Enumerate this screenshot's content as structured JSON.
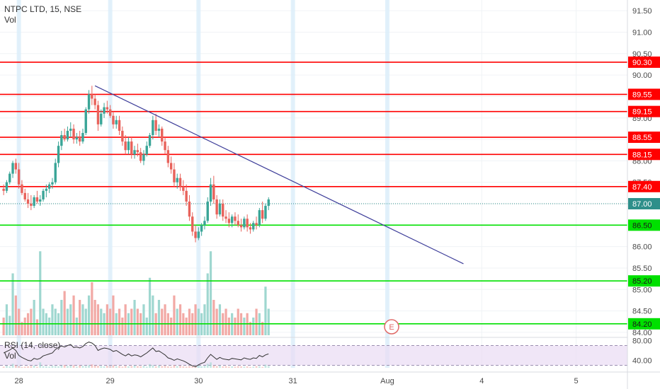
{
  "header": {
    "title": "NTPC LTD, 15, NSE",
    "volume_label": "Vol",
    "rsi_label": "RSI (14, close)",
    "rsi_vol_label": "Vol"
  },
  "colors": {
    "up": "#3aa597",
    "down": "#e8625b",
    "vol_up": "#9fd7d0",
    "vol_down": "#f2a9a5",
    "resistance": "#ff0000",
    "support": "#00e000",
    "trendline": "#3d3d99",
    "rsi_band": "#e9dcf3",
    "rsi_line": "#333333",
    "highlight": "#dbeefa",
    "event": "#e06a67"
  },
  "event_marker": "E",
  "chart_data": {
    "type": "candlestick",
    "symbol": "NTPC LTD",
    "interval": "15",
    "exchange": "NSE",
    "price_axis": {
      "ylim": [
        83.9,
        91.75
      ],
      "ticks": [
        "84.00",
        "84.50",
        "85.00",
        "85.50",
        "86.00",
        "86.50",
        "87.00",
        "87.50",
        "88.00",
        "88.50",
        "89.00",
        "89.50",
        "90.00",
        "90.50",
        "91.00",
        "91.50"
      ]
    },
    "time_axis": {
      "labels": [
        "28",
        "29",
        "30",
        "31",
        "Aug",
        "4",
        "5"
      ]
    },
    "current_price": 87.0,
    "horizontal_levels": [
      {
        "label": "90.30",
        "value": 90.3,
        "kind": "resistance"
      },
      {
        "label": "89.55",
        "value": 89.55,
        "kind": "resistance"
      },
      {
        "label": "89.15",
        "value": 89.15,
        "kind": "resistance"
      },
      {
        "label": "88.55",
        "value": 88.55,
        "kind": "resistance"
      },
      {
        "label": "88.15",
        "value": 88.15,
        "kind": "resistance"
      },
      {
        "label": "87.40",
        "value": 87.4,
        "kind": "resistance"
      },
      {
        "label": "87.00",
        "value": 87.0,
        "kind": "current"
      },
      {
        "label": "86.50",
        "value": 86.5,
        "kind": "support"
      },
      {
        "label": "85.20",
        "value": 85.2,
        "kind": "support"
      },
      {
        "label": "84.20",
        "value": 84.2,
        "kind": "support"
      }
    ],
    "trendline": {
      "from": {
        "bar": 30,
        "price": 89.75
      },
      "to": {
        "bar": 151,
        "price": 85.6
      }
    },
    "rsi": {
      "ylim": [
        25,
        85
      ],
      "band": [
        30,
        70
      ],
      "ticks": [
        "40.00",
        "80.00"
      ]
    },
    "candles": [
      [
        87.35,
        87.45,
        87.2,
        87.3
      ],
      [
        87.3,
        87.55,
        87.25,
        87.5
      ],
      [
        87.5,
        87.75,
        87.45,
        87.7
      ],
      [
        87.7,
        88.0,
        87.6,
        87.95
      ],
      [
        87.95,
        88.05,
        87.7,
        87.8
      ],
      [
        87.8,
        87.95,
        87.35,
        87.45
      ],
      [
        87.45,
        87.55,
        87.2,
        87.25
      ],
      [
        87.25,
        87.35,
        87.05,
        87.1
      ],
      [
        87.1,
        87.25,
        86.9,
        87.0
      ],
      [
        87.0,
        87.2,
        86.85,
        86.95
      ],
      [
        86.95,
        87.2,
        86.9,
        87.15
      ],
      [
        87.15,
        87.3,
        87.0,
        87.05
      ],
      [
        87.05,
        87.2,
        86.95,
        87.1
      ],
      [
        87.1,
        87.35,
        87.05,
        87.3
      ],
      [
        87.3,
        87.45,
        87.15,
        87.35
      ],
      [
        87.35,
        87.5,
        87.25,
        87.45
      ],
      [
        87.45,
        87.6,
        87.35,
        87.5
      ],
      [
        87.5,
        88.05,
        87.45,
        87.95
      ],
      [
        87.95,
        88.45,
        87.85,
        88.35
      ],
      [
        88.35,
        88.7,
        88.25,
        88.6
      ],
      [
        88.6,
        88.75,
        88.45,
        88.5
      ],
      [
        88.5,
        88.8,
        88.45,
        88.7
      ],
      [
        88.7,
        88.9,
        88.55,
        88.75
      ],
      [
        88.75,
        88.85,
        88.4,
        88.5
      ],
      [
        88.5,
        88.65,
        88.4,
        88.55
      ],
      [
        88.55,
        88.7,
        88.35,
        88.45
      ],
      [
        88.45,
        88.75,
        88.4,
        88.65
      ],
      [
        88.65,
        89.25,
        88.6,
        89.2
      ],
      [
        89.2,
        89.65,
        89.1,
        89.55
      ],
      [
        89.55,
        89.75,
        89.3,
        89.45
      ],
      [
        89.45,
        89.55,
        89.2,
        89.3
      ],
      [
        89.3,
        89.4,
        88.7,
        88.85
      ],
      [
        88.85,
        89.2,
        88.8,
        89.1
      ],
      [
        89.1,
        89.35,
        89.0,
        89.25
      ],
      [
        89.25,
        89.4,
        89.1,
        89.2
      ],
      [
        89.2,
        89.3,
        89.0,
        89.05
      ],
      [
        89.05,
        89.15,
        88.75,
        88.85
      ],
      [
        88.85,
        89.05,
        88.75,
        88.95
      ],
      [
        88.95,
        89.05,
        88.6,
        88.7
      ],
      [
        88.7,
        88.8,
        88.35,
        88.45
      ],
      [
        88.45,
        88.6,
        88.15,
        88.25
      ],
      [
        88.25,
        88.55,
        88.15,
        88.45
      ],
      [
        88.45,
        88.55,
        88.05,
        88.15
      ],
      [
        88.15,
        88.35,
        88.05,
        88.25
      ],
      [
        88.25,
        88.4,
        88.1,
        88.2
      ],
      [
        88.2,
        88.3,
        87.95,
        88.0
      ],
      [
        88.0,
        88.25,
        87.9,
        88.15
      ],
      [
        88.15,
        88.45,
        88.1,
        88.35
      ],
      [
        88.35,
        88.65,
        88.3,
        88.6
      ],
      [
        88.6,
        89.05,
        88.5,
        88.95
      ],
      [
        88.95,
        89.1,
        88.6,
        88.7
      ],
      [
        88.7,
        88.85,
        88.55,
        88.75
      ],
      [
        88.75,
        88.8,
        88.35,
        88.45
      ],
      [
        88.45,
        88.55,
        88.15,
        88.25
      ],
      [
        88.25,
        88.35,
        87.85,
        87.95
      ],
      [
        87.95,
        88.1,
        87.7,
        87.8
      ],
      [
        87.8,
        87.95,
        87.4,
        87.5
      ],
      [
        87.5,
        87.7,
        87.35,
        87.6
      ],
      [
        87.6,
        87.7,
        87.3,
        87.4
      ],
      [
        87.4,
        87.55,
        87.2,
        87.3
      ],
      [
        87.3,
        87.45,
        86.95,
        87.05
      ],
      [
        87.05,
        87.2,
        86.6,
        86.7
      ],
      [
        86.7,
        86.8,
        86.25,
        86.35
      ],
      [
        86.35,
        86.5,
        86.1,
        86.2
      ],
      [
        86.2,
        86.45,
        86.15,
        86.35
      ],
      [
        86.35,
        86.55,
        86.25,
        86.5
      ],
      [
        86.5,
        86.7,
        86.4,
        86.6
      ],
      [
        86.6,
        87.15,
        86.55,
        87.05
      ],
      [
        87.05,
        87.6,
        86.95,
        87.45
      ],
      [
        87.45,
        87.65,
        87.0,
        87.1
      ],
      [
        87.1,
        87.2,
        86.65,
        86.75
      ],
      [
        86.75,
        87.1,
        86.7,
        87.0
      ],
      [
        87.0,
        87.1,
        86.6,
        86.7
      ],
      [
        86.7,
        86.85,
        86.55,
        86.65
      ],
      [
        86.65,
        86.8,
        86.45,
        86.55
      ],
      [
        86.55,
        86.75,
        86.45,
        86.7
      ],
      [
        86.7,
        86.8,
        86.5,
        86.6
      ],
      [
        86.6,
        86.75,
        86.45,
        86.5
      ],
      [
        86.5,
        86.65,
        86.35,
        86.45
      ],
      [
        86.45,
        86.7,
        86.4,
        86.65
      ],
      [
        86.65,
        86.75,
        86.35,
        86.45
      ],
      [
        86.45,
        86.55,
        86.3,
        86.4
      ],
      [
        86.4,
        86.6,
        86.35,
        86.55
      ],
      [
        86.55,
        86.7,
        86.4,
        86.5
      ],
      [
        86.5,
        86.9,
        86.45,
        86.85
      ],
      [
        86.85,
        87.05,
        86.55,
        86.65
      ],
      [
        86.65,
        87.0,
        86.6,
        86.95
      ],
      [
        86.95,
        87.15,
        86.85,
        87.1
      ]
    ],
    "volume": [
      0.2,
      0.35,
      0.22,
      0.7,
      0.45,
      0.3,
      0.15,
      0.2,
      0.25,
      0.3,
      0.4,
      0.18,
      0.95,
      0.3,
      0.25,
      0.2,
      0.35,
      0.3,
      0.25,
      0.4,
      0.5,
      0.3,
      0.35,
      0.45,
      0.2,
      0.4,
      0.35,
      0.3,
      0.45,
      0.6,
      0.4,
      0.35,
      0.3,
      0.25,
      0.35,
      0.3,
      0.45,
      0.25,
      0.3,
      0.2,
      0.35,
      0.25,
      0.3,
      0.4,
      0.3,
      0.25,
      0.35,
      0.2,
      0.65,
      0.45,
      0.25,
      0.4,
      0.3,
      0.35,
      0.25,
      0.2,
      0.45,
      0.3,
      0.35,
      0.25,
      0.2,
      0.3,
      0.25,
      0.35,
      0.3,
      0.25,
      0.35,
      0.7,
      0.95,
      0.4,
      0.3,
      0.35,
      0.25,
      0.3,
      0.2,
      0.25,
      0.2,
      0.3,
      0.25,
      0.2,
      0.25,
      0.15,
      0.2,
      0.3,
      0.25,
      0.15,
      0.55,
      0.3
    ],
    "rsi_values": [
      55,
      58,
      61,
      65,
      60,
      50,
      46,
      43,
      40,
      39,
      44,
      42,
      44,
      49,
      51,
      53,
      55,
      62,
      66,
      69,
      67,
      70,
      72,
      66,
      67,
      65,
      68,
      74,
      77,
      75,
      70,
      60,
      63,
      65,
      64,
      62,
      58,
      60,
      56,
      52,
      49,
      53,
      49,
      51,
      50,
      47,
      51,
      55,
      60,
      65,
      58,
      59,
      55,
      51,
      45,
      43,
      40,
      43,
      41,
      39,
      36,
      32,
      29,
      27,
      31,
      34,
      36,
      45,
      52,
      47,
      42,
      46,
      43,
      42,
      41,
      44,
      43,
      42,
      41,
      45,
      43,
      42,
      45,
      44,
      50,
      47,
      51,
      53
    ],
    "highlight_bars": [
      5,
      35,
      64,
      95,
      126
    ]
  }
}
